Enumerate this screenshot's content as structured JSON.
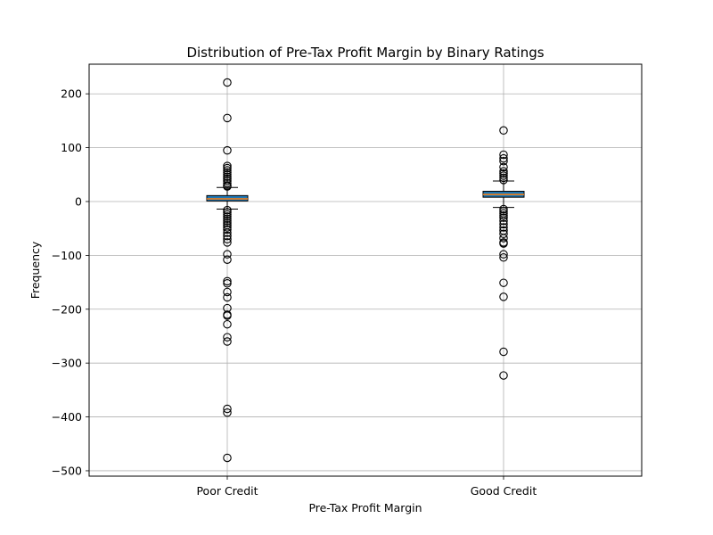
{
  "chart_data": {
    "type": "box",
    "title": "Distribution of Pre-Tax Profit Margin by Binary Ratings",
    "xlabel": "Pre-Tax Profit Margin",
    "ylabel": "Frequency",
    "ylim": [
      -510,
      255
    ],
    "yticks": [
      200,
      100,
      0,
      -100,
      -200,
      -300,
      -400,
      -500
    ],
    "ytick_labels": [
      "200",
      "100",
      "0",
      "−100",
      "−200",
      "−300",
      "−400",
      "−500"
    ],
    "grid": true,
    "categories": [
      "Poor Credit",
      "Good Credit"
    ],
    "box_color": "#1f77b4",
    "median_color": "#ff7f0e",
    "boxes": [
      {
        "name": "Poor Credit",
        "q1": 1,
        "median": 5,
        "q3": 11,
        "whisker_low": -14,
        "whisker_high": 26,
        "outliers": [
          221,
          155,
          95,
          66,
          62,
          58,
          54,
          50,
          46,
          42,
          38,
          34,
          30,
          28,
          -16,
          -20,
          -24,
          -28,
          -32,
          -36,
          -40,
          -44,
          -48,
          -52,
          -58,
          -64,
          -70,
          -76,
          -98,
          -108,
          -148,
          -152,
          -168,
          -178,
          -198,
          -210,
          -212,
          -228,
          -252,
          -260,
          -385,
          -392,
          -476
        ]
      },
      {
        "name": "Good Credit",
        "q1": 8,
        "median": 13,
        "q3": 19,
        "whisker_low": -11,
        "whisker_high": 38,
        "outliers": [
          132,
          87,
          80,
          75,
          64,
          56,
          52,
          48,
          44,
          40,
          -14,
          -18,
          -22,
          -26,
          -30,
          -36,
          -42,
          -48,
          -54,
          -60,
          -68,
          -76,
          -78,
          -98,
          -104,
          -151,
          -177,
          -279,
          -323
        ]
      }
    ]
  }
}
